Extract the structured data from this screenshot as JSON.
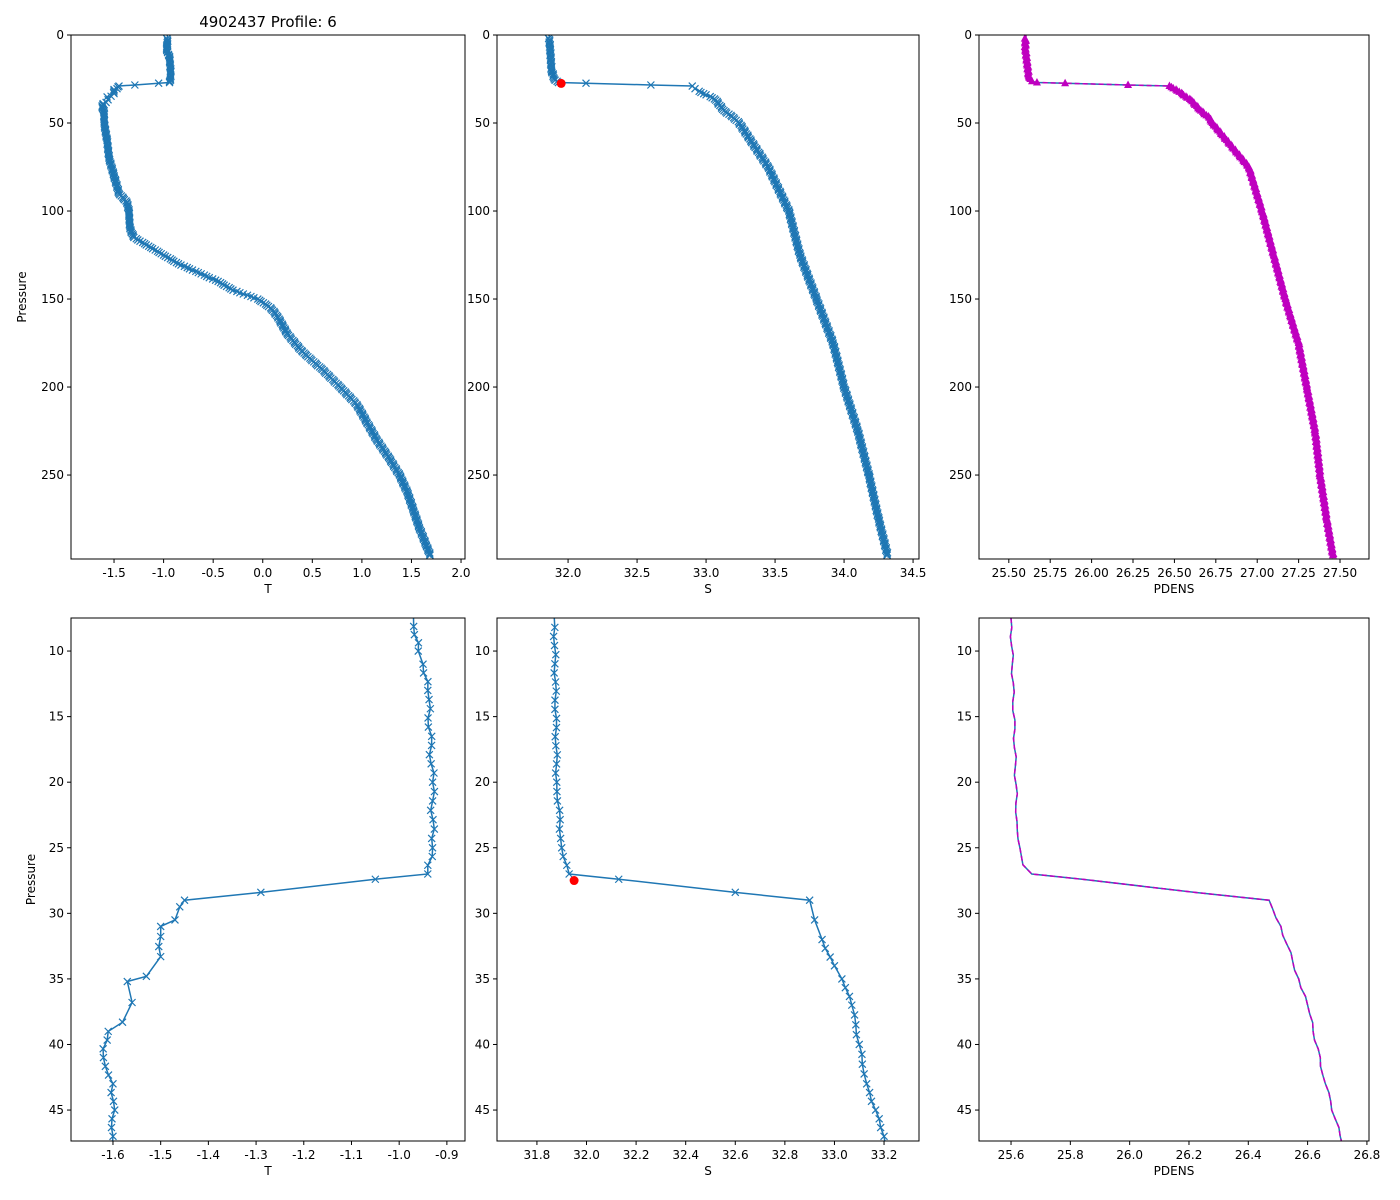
{
  "title": "4902437 Profile: 6",
  "colors": {
    "line": "#1f77b4",
    "pdens_marker": "#bf00bf",
    "highlight": "#ff0000"
  },
  "chart_data": {
    "type": "line",
    "profile": {
      "T": [
        [
          0,
          -0.965
        ],
        [
          5,
          -0.96
        ],
        [
          7.5,
          -0.97
        ],
        [
          10,
          -0.96
        ],
        [
          11,
          -0.95
        ],
        [
          13,
          -0.94
        ],
        [
          20,
          -0.93
        ],
        [
          25,
          -0.93
        ],
        [
          27,
          -0.94
        ],
        [
          27.4,
          -1.05
        ],
        [
          28.4,
          -1.29
        ],
        [
          29,
          -1.45
        ],
        [
          29.5,
          -1.46
        ],
        [
          30.5,
          -1.47
        ],
        [
          31,
          -1.5
        ],
        [
          33.3,
          -1.5
        ],
        [
          34.8,
          -1.53
        ],
        [
          35.2,
          -1.57
        ],
        [
          36.8,
          -1.56
        ],
        [
          38.3,
          -1.58
        ],
        [
          39,
          -1.61
        ],
        [
          41,
          -1.62
        ],
        [
          43,
          -1.6
        ],
        [
          47,
          -1.6
        ],
        [
          50,
          -1.6
        ],
        [
          60,
          -1.57
        ],
        [
          70,
          -1.55
        ],
        [
          80,
          -1.5
        ],
        [
          90,
          -1.45
        ],
        [
          95,
          -1.37
        ],
        [
          100,
          -1.35
        ],
        [
          110,
          -1.34
        ],
        [
          115,
          -1.3
        ],
        [
          120,
          -1.15
        ],
        [
          125,
          -1.0
        ],
        [
          130,
          -0.85
        ],
        [
          135,
          -0.65
        ],
        [
          140,
          -0.45
        ],
        [
          145,
          -0.3
        ],
        [
          150,
          -0.05
        ],
        [
          155,
          0.08
        ],
        [
          160,
          0.15
        ],
        [
          170,
          0.25
        ],
        [
          180,
          0.4
        ],
        [
          190,
          0.6
        ],
        [
          200,
          0.78
        ],
        [
          210,
          0.95
        ],
        [
          220,
          1.05
        ],
        [
          230,
          1.15
        ],
        [
          240,
          1.27
        ],
        [
          250,
          1.38
        ],
        [
          260,
          1.46
        ],
        [
          270,
          1.52
        ],
        [
          280,
          1.58
        ],
        [
          290,
          1.65
        ],
        [
          297,
          1.7
        ]
      ],
      "S": [
        [
          0,
          31.86
        ],
        [
          7.5,
          31.87
        ],
        [
          20,
          31.88
        ],
        [
          25,
          31.9
        ],
        [
          27,
          31.93
        ],
        [
          27.4,
          32.13
        ],
        [
          28.4,
          32.6
        ],
        [
          29,
          32.9
        ],
        [
          30.5,
          32.92
        ],
        [
          32,
          32.95
        ],
        [
          34,
          33.0
        ],
        [
          35,
          33.03
        ],
        [
          37,
          33.07
        ],
        [
          40,
          33.1
        ],
        [
          43,
          33.13
        ],
        [
          47,
          33.2
        ],
        [
          50,
          33.24
        ],
        [
          75,
          33.45
        ],
        [
          100,
          33.6
        ],
        [
          125,
          33.68
        ],
        [
          150,
          33.8
        ],
        [
          175,
          33.92
        ],
        [
          200,
          34.0
        ],
        [
          225,
          34.1
        ],
        [
          250,
          34.18
        ],
        [
          275,
          34.25
        ],
        [
          297,
          34.32
        ]
      ],
      "PDENS": [
        [
          0,
          25.6
        ],
        [
          7.5,
          25.6
        ],
        [
          23,
          25.62
        ],
        [
          25,
          25.63
        ],
        [
          26.3,
          25.64
        ],
        [
          27,
          25.67
        ],
        [
          27.4,
          25.84
        ],
        [
          28.4,
          26.22
        ],
        [
          29,
          26.47
        ],
        [
          31,
          26.51
        ],
        [
          35,
          26.57
        ],
        [
          37,
          26.6
        ],
        [
          43,
          26.66
        ],
        [
          47,
          26.71
        ],
        [
          50,
          26.73
        ],
        [
          75,
          26.95
        ],
        [
          100,
          27.03
        ],
        [
          125,
          27.1
        ],
        [
          150,
          27.17
        ],
        [
          175,
          27.25
        ],
        [
          200,
          27.3
        ],
        [
          225,
          27.35
        ],
        [
          250,
          27.38
        ],
        [
          275,
          27.42
        ],
        [
          297,
          27.46
        ]
      ]
    },
    "highlight_point": {
      "pressure": 27.5,
      "S": 31.95
    },
    "panels": [
      {
        "var": "T",
        "xlabel": "T",
        "ylabel": "Pressure",
        "xlim": [
          -1.934,
          2.04
        ],
        "ylim": [
          297.7,
          0
        ],
        "xticks": [
          "-1.5",
          "-1.0",
          "-0.5",
          "0.0",
          "0.5",
          "1.0",
          "1.5",
          "2.0"
        ],
        "yticks": [
          "0",
          "50",
          "100",
          "150",
          "200",
          "250"
        ],
        "marker": "x"
      },
      {
        "var": "S",
        "xlabel": "S",
        "ylabel": "",
        "xlim": [
          31.485,
          34.543
        ],
        "ylim": [
          297.7,
          0
        ],
        "xticks": [
          "32.0",
          "32.5",
          "33.0",
          "33.5",
          "34.0",
          "34.5"
        ],
        "yticks": [
          "0",
          "50",
          "100",
          "150",
          "200",
          "250"
        ],
        "marker": "x",
        "highlight": true
      },
      {
        "var": "PDENS",
        "xlabel": "PDENS",
        "ylabel": "",
        "xlim": [
          25.32,
          27.675
        ],
        "ylim": [
          297.7,
          0
        ],
        "xticks": [
          "25.50",
          "25.75",
          "26.00",
          "26.25",
          "26.50",
          "26.75",
          "27.00",
          "27.25",
          "27.50"
        ],
        "yticks": [
          "0",
          "50",
          "100",
          "150",
          "200",
          "250"
        ],
        "marker": "triangle"
      },
      {
        "var": "T",
        "xlabel": "T",
        "ylabel": "Pressure",
        "xlim": [
          -1.688,
          -0.862
        ],
        "ylim": [
          47.36,
          7.48
        ],
        "xticks": [
          "-1.6",
          "-1.5",
          "-1.4",
          "-1.3",
          "-1.2",
          "-1.1",
          "-1.0",
          "-0.9"
        ],
        "yticks": [
          "10",
          "15",
          "20",
          "25",
          "30",
          "35",
          "40",
          "45"
        ],
        "marker": "x"
      },
      {
        "var": "S",
        "xlabel": "S",
        "ylabel": "",
        "xlim": [
          31.639,
          33.341
        ],
        "ylim": [
          47.36,
          7.48
        ],
        "xticks": [
          "31.8",
          "32.0",
          "32.2",
          "32.4",
          "32.6",
          "32.8",
          "33.0",
          "33.2"
        ],
        "yticks": [
          "10",
          "15",
          "20",
          "25",
          "30",
          "35",
          "40",
          "45"
        ],
        "marker": "x",
        "highlight": true
      },
      {
        "var": "PDENS",
        "xlabel": "PDENS",
        "ylabel": "",
        "xlim": [
          25.492,
          26.807
        ],
        "ylim": [
          47.36,
          7.48
        ],
        "xticks": [
          "25.6",
          "25.8",
          "26.0",
          "26.2",
          "26.4",
          "26.6",
          "26.8"
        ],
        "yticks": [
          "10",
          "15",
          "20",
          "25",
          "30",
          "35",
          "40",
          "45"
        ],
        "marker": "none"
      }
    ]
  }
}
